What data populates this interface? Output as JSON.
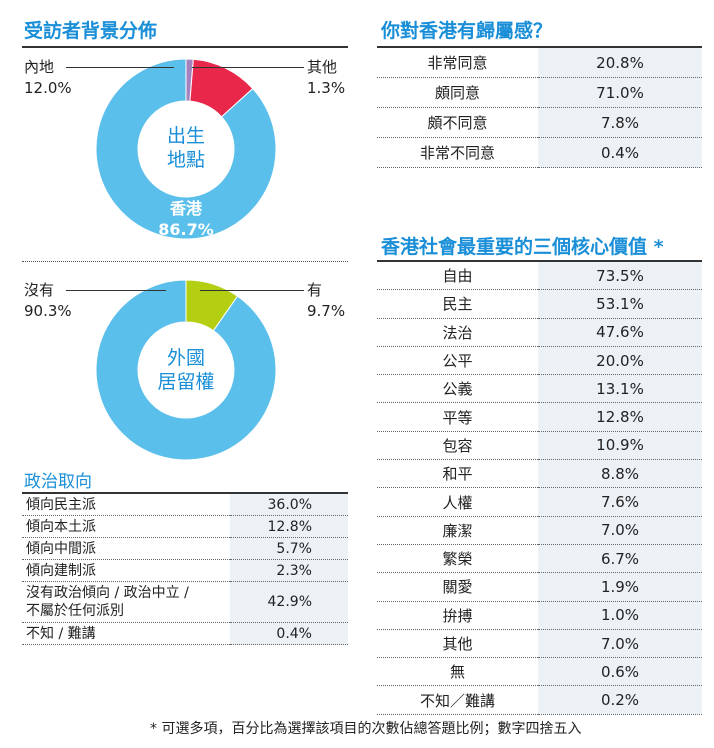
{
  "birthplace": {
    "section_title": "受訪者背景分佈",
    "center_label_1": "出生",
    "center_label_2": "地點",
    "chart_data": {
      "type": "pie",
      "categories": [
        "香港",
        "內地",
        "其他"
      ],
      "values": [
        86.7,
        12.0,
        1.3
      ],
      "colors": [
        "#5bbfeb",
        "#e8274a",
        "#a582bd"
      ]
    },
    "labels": {
      "mainland_name": "內地",
      "mainland_value": "12.0%",
      "other_name": "其他",
      "other_value": "1.3%",
      "hk_name": "香港",
      "hk_value": "86.7%"
    }
  },
  "residency": {
    "center_label_1": "外國",
    "center_label_2": "居留權",
    "chart_data": {
      "type": "pie",
      "categories": [
        "沒有",
        "有"
      ],
      "values": [
        90.3,
        9.7
      ],
      "colors": [
        "#5bbfeb",
        "#b4cf12"
      ]
    },
    "labels": {
      "no_name": "沒有",
      "no_value": "90.3%",
      "yes_name": "有",
      "yes_value": "9.7%"
    }
  },
  "political": {
    "section_title": "政治取向",
    "rows": [
      {
        "label": "傾向民主派",
        "value": "36.0%"
      },
      {
        "label": "傾向本土派",
        "value": "12.8%"
      },
      {
        "label": "傾向中間派",
        "value": "5.7%"
      },
      {
        "label": "傾向建制派",
        "value": "2.3%"
      },
      {
        "label": "沒有政治傾向 / 政治中立 /",
        "label2": "不屬於任何派別",
        "value": "42.9%"
      },
      {
        "label": "不知 / 難講",
        "value": "0.4%"
      }
    ]
  },
  "belonging": {
    "section_title": "你對香港有歸屬感？",
    "rows": [
      {
        "label": "非常同意",
        "value": "20.8%"
      },
      {
        "label": "頗同意",
        "value": "71.0%"
      },
      {
        "label": "頗不同意",
        "value": "7.8%"
      },
      {
        "label": "非常不同意",
        "value": "0.4%"
      }
    ]
  },
  "values": {
    "section_title": "香港社會最重要的三個核心價值 *",
    "rows": [
      {
        "label": "自由",
        "value": "73.5%"
      },
      {
        "label": "民主",
        "value": "53.1%"
      },
      {
        "label": "法治",
        "value": "47.6%"
      },
      {
        "label": "公平",
        "value": "20.0%"
      },
      {
        "label": "公義",
        "value": "13.1%"
      },
      {
        "label": "平等",
        "value": "12.8%"
      },
      {
        "label": "包容",
        "value": "10.9%"
      },
      {
        "label": "和平",
        "value": "8.8%"
      },
      {
        "label": "人權",
        "value": "7.6%"
      },
      {
        "label": "廉潔",
        "value": "7.0%"
      },
      {
        "label": "繁榮",
        "value": "6.7%"
      },
      {
        "label": "關愛",
        "value": "1.9%"
      },
      {
        "label": "拚搏",
        "value": "1.0%"
      },
      {
        "label": "其他",
        "value": "7.0%"
      },
      {
        "label": "無",
        "value": "0.6%"
      },
      {
        "label": "不知／難講",
        "value": "0.2%"
      }
    ]
  },
  "footnote": "* 可選多項，百分比為選擇該項目的次數佔總答題比例；數字四捨五入"
}
